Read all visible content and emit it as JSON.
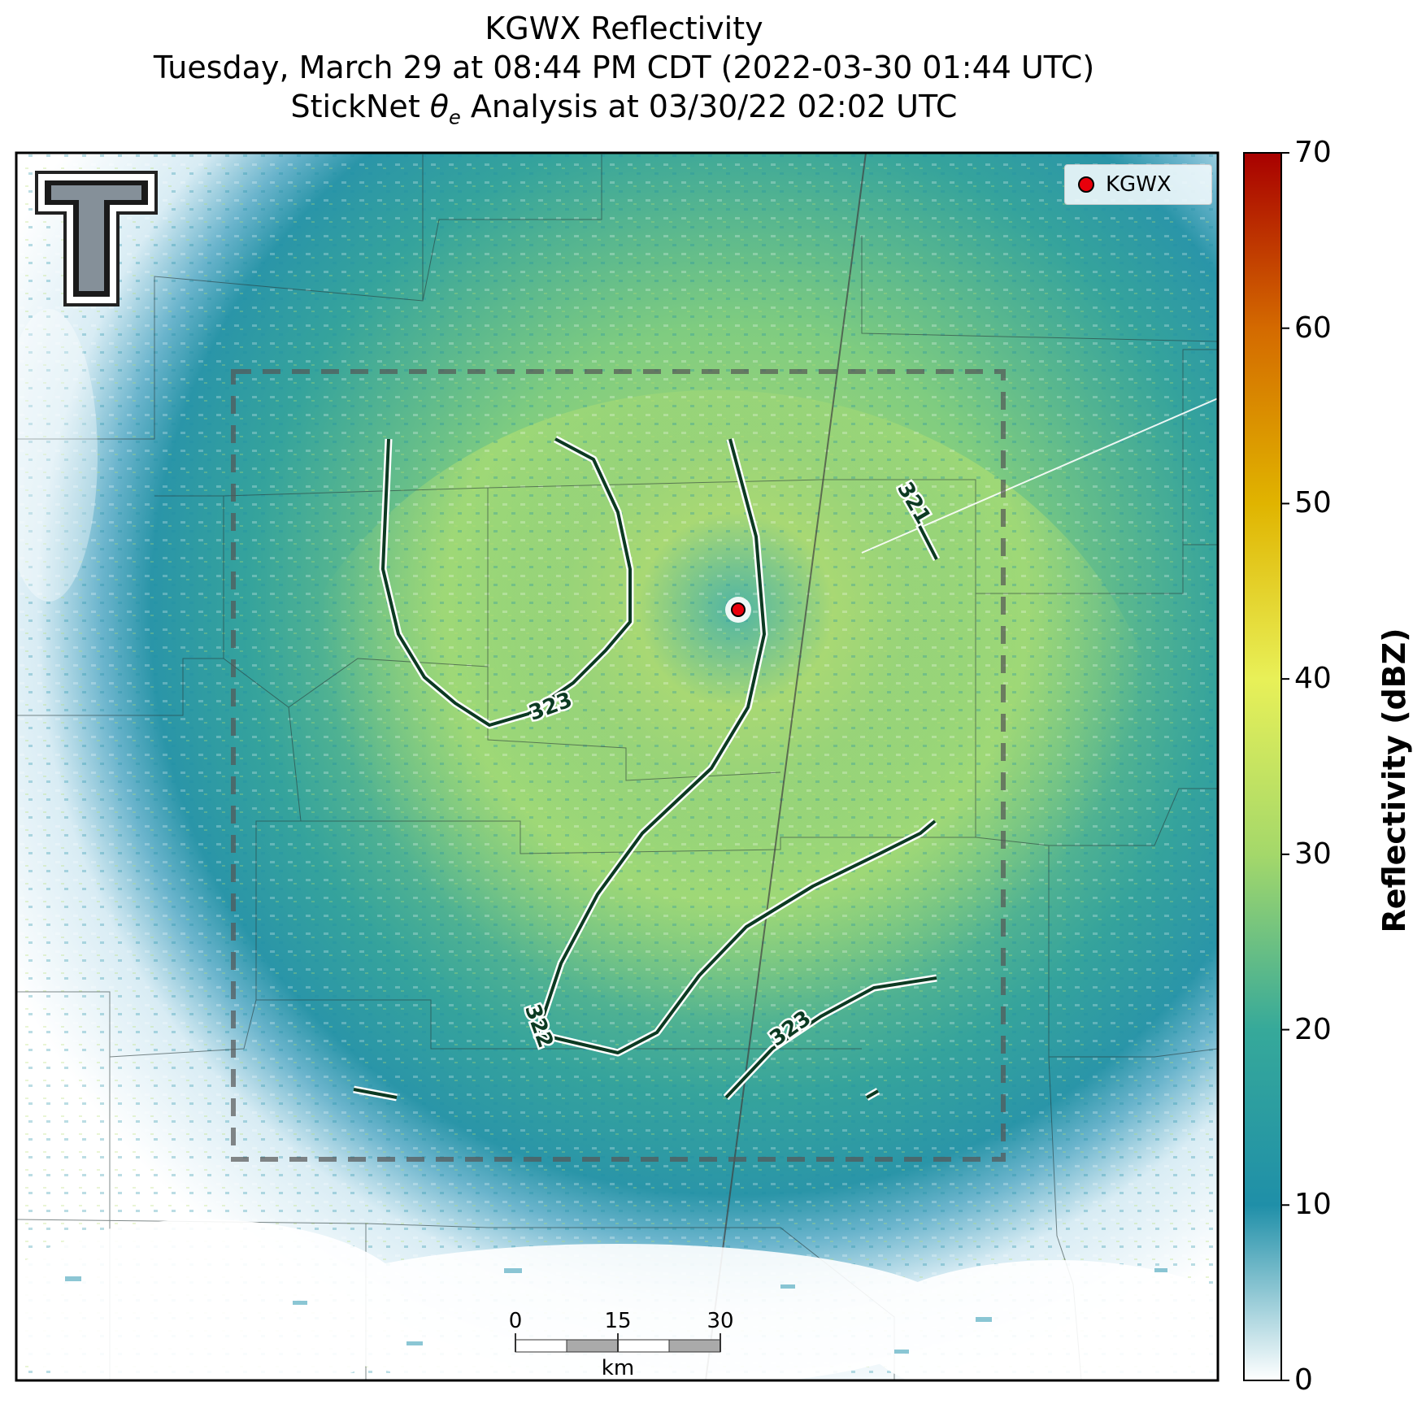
{
  "title": {
    "line1": "KGWX Reflectivity",
    "line2": "Tuesday, March 29 at 08:44 PM CDT (2022-03-30 01:44 UTC)",
    "line3_prefix": "StickNet ",
    "line3_symbol": "θ",
    "line3_subscript": "e",
    "line3_suffix": " Analysis at 03/30/22 02:02 UTC"
  },
  "legend": {
    "station_label": "KGWX",
    "marker_color": "#e8000b"
  },
  "contours": [
    {
      "value": "323"
    },
    {
      "value": "322"
    },
    {
      "value": "321"
    },
    {
      "value": "323"
    }
  ],
  "colorbar": {
    "label": "Reflectivity (dBZ)",
    "min": 0,
    "max": 70,
    "ticks": [
      "0",
      "10",
      "20",
      "30",
      "40",
      "50",
      "60",
      "70"
    ],
    "colors": [
      "#ffffff",
      "#1f8fa8",
      "#36a99a",
      "#a4d86a",
      "#e8f058",
      "#e0b400",
      "#d46a00",
      "#a80000"
    ]
  },
  "scale_bar": {
    "ticks": [
      "0",
      "15",
      "30"
    ],
    "unit": "km"
  },
  "logo": {
    "text": "T"
  },
  "colors": {
    "contour": "#0c3a22",
    "analysis_box": "#555555",
    "radar_base": "#2e9aa6"
  }
}
